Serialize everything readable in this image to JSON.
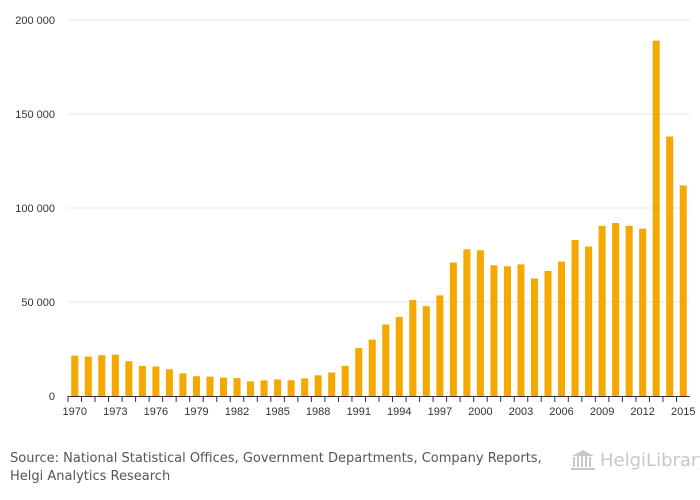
{
  "chart_data": {
    "type": "bar",
    "title": "",
    "xlabel": "",
    "ylabel": "",
    "ylim": [
      0,
      200000
    ],
    "yticks": [
      0,
      50000,
      100000,
      150000,
      200000
    ],
    "ytick_labels": [
      "0",
      "50 000",
      "100 000",
      "150 000",
      "200 000"
    ],
    "xtick_labels": [
      "1970",
      "1973",
      "1976",
      "1979",
      "1982",
      "1985",
      "1988",
      "1991",
      "1994",
      "1997",
      "2000",
      "2003",
      "2006",
      "2009",
      "2012",
      "2015"
    ],
    "grid": true,
    "bar_color": "#f5a800",
    "categories": [
      "1970",
      "1971",
      "1972",
      "1973",
      "1974",
      "1975",
      "1976",
      "1977",
      "1978",
      "1979",
      "1980",
      "1981",
      "1982",
      "1983",
      "1984",
      "1985",
      "1986",
      "1987",
      "1988",
      "1989",
      "1990",
      "1991",
      "1992",
      "1993",
      "1994",
      "1995",
      "1996",
      "1997",
      "1998",
      "1999",
      "2000",
      "2001",
      "2002",
      "2003",
      "2004",
      "2005",
      "2006",
      "2007",
      "2008",
      "2009",
      "2010",
      "2011",
      "2012",
      "2013",
      "2014",
      "2015"
    ],
    "values": [
      21500,
      21000,
      21700,
      22000,
      18500,
      16000,
      15700,
      14200,
      12000,
      10500,
      10300,
      9800,
      9500,
      7800,
      8300,
      8800,
      8400,
      9400,
      11000,
      12500,
      16000,
      25500,
      30000,
      38000,
      42000,
      51000,
      47800,
      53500,
      71000,
      78000,
      77500,
      69500,
      69000,
      70000,
      62500,
      66500,
      71500,
      83000,
      79500,
      90500,
      92000,
      90500,
      89000,
      189000,
      138000,
      112000
    ]
  },
  "footer": {
    "source_text": "Source: National Statistical Offices, Government Departments, Company Reports, Helgi Analytics Research",
    "logo_text": "HelgiLibrary."
  }
}
